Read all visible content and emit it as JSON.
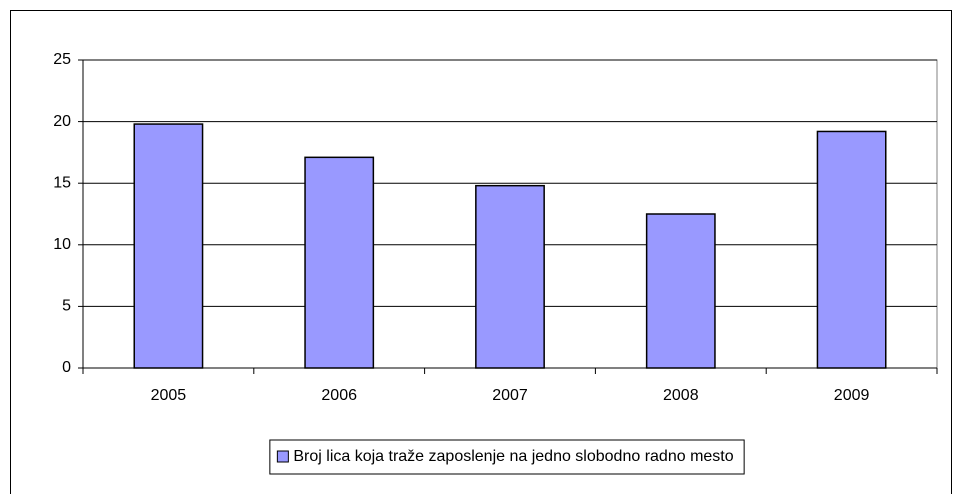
{
  "chart_data": {
    "type": "bar",
    "categories": [
      "2005",
      "2006",
      "2007",
      "2008",
      "2009"
    ],
    "series": [
      {
        "name": "Broj lica koja traže zaposlenje na jedno slobodno radno mesto",
        "color": "#9999ff",
        "values": [
          19.8,
          17.1,
          14.8,
          12.5,
          19.2
        ]
      }
    ],
    "ylim": [
      0,
      25
    ],
    "yticks": [
      0,
      5,
      10,
      15,
      20,
      25
    ],
    "grid": true,
    "legend": "bottom"
  }
}
